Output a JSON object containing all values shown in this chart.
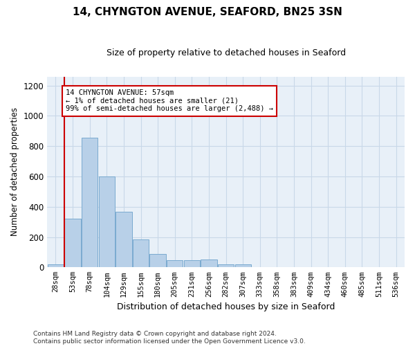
{
  "title1": "14, CHYNGTON AVENUE, SEAFORD, BN25 3SN",
  "title2": "Size of property relative to detached houses in Seaford",
  "xlabel": "Distribution of detached houses by size in Seaford",
  "ylabel": "Number of detached properties",
  "footnote": "Contains HM Land Registry data © Crown copyright and database right 2024.\nContains public sector information licensed under the Open Government Licence v3.0.",
  "bar_labels": [
    "28sqm",
    "53sqm",
    "78sqm",
    "104sqm",
    "129sqm",
    "155sqm",
    "180sqm",
    "205sqm",
    "231sqm",
    "256sqm",
    "282sqm",
    "307sqm",
    "333sqm",
    "358sqm",
    "383sqm",
    "409sqm",
    "434sqm",
    "460sqm",
    "485sqm",
    "511sqm",
    "536sqm"
  ],
  "bar_values": [
    21,
    320,
    855,
    600,
    365,
    185,
    90,
    45,
    45,
    50,
    20,
    20,
    0,
    0,
    0,
    0,
    0,
    0,
    0,
    0,
    0
  ],
  "bar_color": "#b8d0e8",
  "bar_edge_color": "#7aaad0",
  "grid_color": "#c8d8e8",
  "background_color": "#e8f0f8",
  "annotation_text": "14 CHYNGTON AVENUE: 57sqm\n← 1% of detached houses are smaller (21)\n99% of semi-detached houses are larger (2,488) →",
  "annotation_box_facecolor": "#ffffff",
  "annotation_border_color": "#cc0000",
  "ylim": [
    0,
    1260
  ],
  "yticks": [
    0,
    200,
    400,
    600,
    800,
    1000,
    1200
  ],
  "title1_fontsize": 11,
  "title2_fontsize": 9
}
